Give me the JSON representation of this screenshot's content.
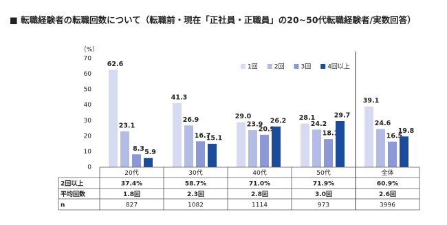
{
  "chart_data": {
    "type": "bar",
    "title": "■ 転職経験者の転職回数について（転職前・現在「正社員・正職員」の20~50代転職経験者/実数回答）",
    "y_label": "（%）",
    "categories": [
      "20代",
      "30代",
      "40代",
      "50代",
      "全体"
    ],
    "series": [
      {
        "name": "1回",
        "color": "#d7dbf1",
        "values": [
          62.6,
          41.3,
          29.0,
          28.1,
          39.1
        ],
        "value_labels": [
          "62.6",
          "41.3",
          "29.0",
          "28.1",
          "39.1"
        ]
      },
      {
        "name": "2回",
        "color": "#b3bce4",
        "values": [
          23.1,
          26.9,
          23.9,
          24.2,
          24.6
        ],
        "value_labels": [
          "23.1",
          "26.9",
          "23.9",
          "24.2",
          "24.6"
        ]
      },
      {
        "name": "3回",
        "color": "#8d99d6",
        "values": [
          8.3,
          16.7,
          20.9,
          18.1,
          16.5
        ],
        "value_labels": [
          "8.3",
          "16.7",
          "20.9",
          "18.1",
          "16.5"
        ]
      },
      {
        "name": "4回以上",
        "color": "#1b4b9d",
        "values": [
          5.9,
          15.1,
          26.2,
          29.7,
          19.8
        ],
        "value_labels": [
          "5.9",
          "15.1",
          "26.2",
          "29.7",
          "19.8"
        ]
      }
    ],
    "ylim": [
      0,
      70
    ],
    "yticks": [
      0,
      10,
      20,
      30,
      40,
      50,
      60,
      70
    ],
    "grid": false,
    "legend": "top-right"
  },
  "table": {
    "rows": [
      {
        "label": "2回以上",
        "cells": [
          "37.4%",
          "58.7%",
          "71.0%",
          "71.9%",
          "60.9%"
        ]
      },
      {
        "label": "平均回数",
        "cells": [
          "1.8回",
          "2.3回",
          "2.8回",
          "3.0回",
          "2.6回"
        ]
      },
      {
        "label": "n",
        "cells": [
          "827",
          "1082",
          "1114",
          "973",
          "3996"
        ]
      }
    ]
  }
}
